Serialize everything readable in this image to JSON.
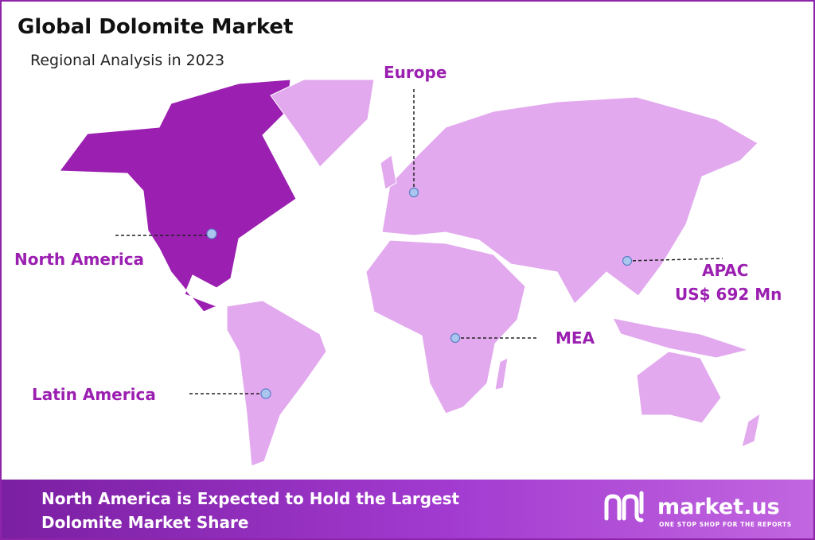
{
  "header": {
    "title": "Global Dolomite Market",
    "subtitle": "Regional Analysis in 2023"
  },
  "regions": [
    {
      "label": "Europe"
    },
    {
      "label": "North America"
    },
    {
      "label": "APAC",
      "value": "US$ 692 Mn"
    },
    {
      "label": "MEA"
    },
    {
      "label": "Latin America"
    }
  ],
  "footer": {
    "headline": [
      "North America is Expected to Hold the Largest",
      "Dolomite Market Share"
    ]
  },
  "logo": {
    "name": "market.us",
    "tagline": "ONE STOP SHOP FOR THE REPORTS"
  }
}
